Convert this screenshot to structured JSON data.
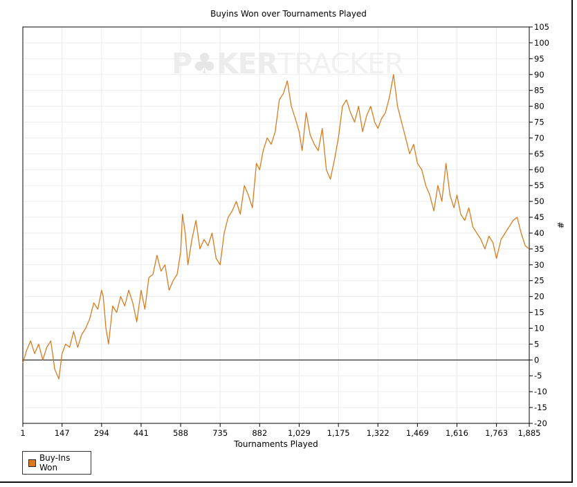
{
  "chart_data": {
    "type": "line",
    "title": "Buyins Won over Tournaments Played",
    "xlabel": "Tournaments Played",
    "ylabel": "#",
    "x_ticks": [
      1,
      147,
      294,
      441,
      588,
      735,
      882,
      1029,
      1175,
      1322,
      1469,
      1616,
      1763,
      1885
    ],
    "x_tick_labels": [
      "1",
      "147",
      "294",
      "441",
      "588",
      "735",
      "882",
      "1,029",
      "1,175",
      "1,322",
      "1,469",
      "1,616",
      "1,763",
      "1,885"
    ],
    "xlim": [
      1,
      1885
    ],
    "ylim": [
      -20,
      105
    ],
    "y_ticks": [
      -20,
      -15,
      -10,
      -5,
      0,
      5,
      10,
      15,
      20,
      25,
      30,
      35,
      40,
      45,
      50,
      55,
      60,
      65,
      70,
      75,
      80,
      85,
      90,
      95,
      100,
      105
    ],
    "y_axis_position": "right",
    "grid": true,
    "legend_position": "bottom-left",
    "watermark": "POKERTRACKER",
    "series": [
      {
        "name": "Buy-Ins Won",
        "color": "#d97b1d",
        "x": [
          1,
          15,
          30,
          45,
          60,
          75,
          90,
          105,
          120,
          135,
          147,
          160,
          175,
          190,
          205,
          220,
          235,
          250,
          265,
          280,
          294,
          300,
          310,
          320,
          335,
          350,
          365,
          380,
          395,
          410,
          425,
          441,
          455,
          470,
          485,
          500,
          515,
          530,
          545,
          560,
          575,
          588,
          595,
          605,
          615,
          630,
          645,
          660,
          675,
          690,
          705,
          720,
          735,
          750,
          765,
          780,
          795,
          810,
          825,
          840,
          855,
          870,
          882,
          895,
          910,
          925,
          940,
          955,
          970,
          985,
          1000,
          1015,
          1029,
          1040,
          1055,
          1070,
          1085,
          1100,
          1115,
          1130,
          1145,
          1160,
          1175,
          1190,
          1205,
          1220,
          1235,
          1250,
          1265,
          1280,
          1295,
          1310,
          1322,
          1335,
          1350,
          1365,
          1380,
          1395,
          1410,
          1425,
          1440,
          1455,
          1469,
          1485,
          1500,
          1515,
          1530,
          1545,
          1560,
          1575,
          1590,
          1605,
          1616,
          1630,
          1645,
          1660,
          1675,
          1690,
          1705,
          1720,
          1735,
          1750,
          1763,
          1780,
          1795,
          1810,
          1825,
          1840,
          1855,
          1870,
          1885
        ],
        "values": [
          -1,
          3,
          6,
          2,
          5,
          0,
          4,
          6,
          -3,
          -6,
          2,
          5,
          4,
          9,
          4,
          8,
          10,
          13,
          18,
          16,
          22,
          20,
          10,
          5,
          17,
          15,
          20,
          17,
          22,
          18,
          12,
          22,
          16,
          26,
          27,
          33,
          28,
          30,
          22,
          25,
          27,
          34,
          46,
          40,
          30,
          38,
          44,
          35,
          38,
          36,
          40,
          32,
          30,
          40,
          45,
          47,
          50,
          46,
          55,
          52,
          48,
          62,
          60,
          66,
          70,
          68,
          72,
          82,
          84,
          88,
          80,
          76,
          72,
          66,
          78,
          71,
          68,
          66,
          73,
          60,
          57,
          63,
          70,
          80,
          82,
          78,
          75,
          80,
          72,
          77,
          80,
          75,
          73,
          76,
          78,
          83,
          90,
          80,
          75,
          70,
          65,
          68,
          62,
          60,
          55,
          52,
          47,
          55,
          50,
          62,
          52,
          48,
          52,
          46,
          44,
          48,
          42,
          40,
          38,
          35,
          39,
          37,
          32,
          38,
          40,
          42,
          44,
          45,
          40,
          36,
          35
        ]
      }
    ]
  },
  "legend": {
    "label": "Buy-Ins Won"
  }
}
